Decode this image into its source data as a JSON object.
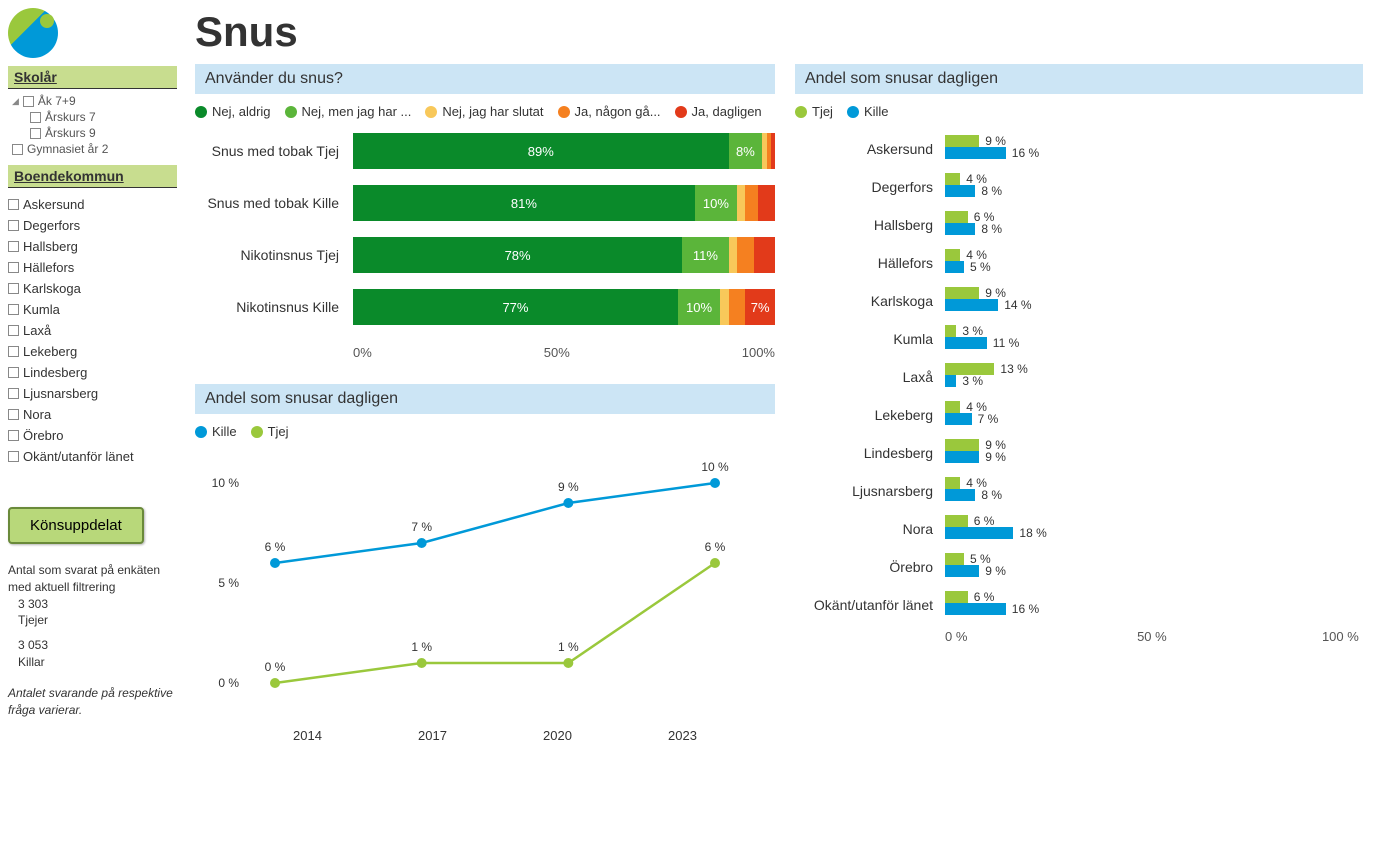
{
  "title": "Snus",
  "sidebar": {
    "skolar_label": "Skolår",
    "tree": {
      "l0": "Åk 7+9",
      "l1a": "Årskurs 7",
      "l1b": "Årskurs 9",
      "l2": "Gymnasiet år 2"
    },
    "boende_label": "Boendekommun",
    "kommuner": [
      "Askersund",
      "Degerfors",
      "Hallsberg",
      "Hällefors",
      "Karlskoga",
      "Kumla",
      "Laxå",
      "Lekeberg",
      "Lindesberg",
      "Ljusnarsberg",
      "Nora",
      "Örebro",
      "Okänt/utanför länet"
    ],
    "kon_btn": "Könsuppdelat",
    "survey": {
      "head": "Antal som svarat på enkäten med aktuell filtrering",
      "n1": "3 303",
      "l1": "Tjejer",
      "n2": "3 053",
      "l2": "Killar"
    },
    "note": "Antalet svarande på respektive fråga varierar."
  },
  "stacked": {
    "title": "Använder du snus?",
    "legend": [
      {
        "label": "Nej, aldrig",
        "color": "#0a8a2a"
      },
      {
        "label": "Nej, men jag har ...",
        "color": "#5bb53a"
      },
      {
        "label": "Nej, jag har slutat",
        "color": "#f8c85a"
      },
      {
        "label": "Ja, någon gå...",
        "color": "#f58020"
      },
      {
        "label": "Ja, dagligen",
        "color": "#e23a1a"
      }
    ],
    "rows": [
      {
        "label": "Snus med tobak Tjej",
        "segs": [
          {
            "v": 89,
            "t": "89%"
          },
          {
            "v": 8,
            "t": "8%"
          },
          {
            "v": 1,
            "t": ""
          },
          {
            "v": 1,
            "t": ""
          },
          {
            "v": 1,
            "t": ""
          }
        ]
      },
      {
        "label": "Snus med tobak Kille",
        "segs": [
          {
            "v": 81,
            "t": "81%"
          },
          {
            "v": 10,
            "t": "10%"
          },
          {
            "v": 2,
            "t": ""
          },
          {
            "v": 3,
            "t": ""
          },
          {
            "v": 4,
            "t": ""
          }
        ]
      },
      {
        "label": "Nikotinsnus Tjej",
        "segs": [
          {
            "v": 78,
            "t": "78%"
          },
          {
            "v": 11,
            "t": "11%"
          },
          {
            "v": 2,
            "t": ""
          },
          {
            "v": 4,
            "t": ""
          },
          {
            "v": 5,
            "t": ""
          }
        ]
      },
      {
        "label": "Nikotinsnus Kille",
        "segs": [
          {
            "v": 77,
            "t": "77%"
          },
          {
            "v": 10,
            "t": "10%"
          },
          {
            "v": 2,
            "t": ""
          },
          {
            "v": 4,
            "t": ""
          },
          {
            "v": 7,
            "t": "7%"
          }
        ]
      }
    ],
    "axis": [
      "0%",
      "50%",
      "100%"
    ]
  },
  "line": {
    "title": "Andel som snusar dagligen",
    "legend": [
      {
        "label": "Kille",
        "color": "#0099d8"
      },
      {
        "label": "Tjej",
        "color": "#9ac83c"
      }
    ],
    "ylim": [
      0,
      10
    ],
    "yticks": [
      {
        "v": 0,
        "l": "0 %"
      },
      {
        "v": 5,
        "l": "5 %"
      },
      {
        "v": 10,
        "l": "10 %"
      }
    ],
    "years": [
      "2014",
      "2017",
      "2020",
      "2023"
    ],
    "kille": [
      {
        "y": 6,
        "l": "6 %"
      },
      {
        "y": 7,
        "l": "7 %"
      },
      {
        "y": 9,
        "l": "9 %"
      },
      {
        "y": 10,
        "l": "10 %"
      }
    ],
    "tjej": [
      {
        "y": 0,
        "l": "0 %"
      },
      {
        "y": 1,
        "l": "1 %"
      },
      {
        "y": 1,
        "l": "1 %"
      },
      {
        "y": 6,
        "l": "6 %"
      }
    ]
  },
  "hbar": {
    "title": "Andel som snusar dagligen",
    "legend": [
      {
        "label": "Tjej",
        "color": "#9ac83c"
      },
      {
        "label": "Kille",
        "color": "#0099d8"
      }
    ],
    "xmax": 100,
    "axis": [
      "0 %",
      "50 %",
      "100 %"
    ],
    "rows": [
      {
        "label": "Askersund",
        "tjej": 9,
        "kille": 16
      },
      {
        "label": "Degerfors",
        "tjej": 4,
        "kille": 8
      },
      {
        "label": "Hallsberg",
        "tjej": 6,
        "kille": 8
      },
      {
        "label": "Hällefors",
        "tjej": 4,
        "kille": 5
      },
      {
        "label": "Karlskoga",
        "tjej": 9,
        "kille": 14
      },
      {
        "label": "Kumla",
        "tjej": 3,
        "kille": 11
      },
      {
        "label": "Laxå",
        "tjej": 13,
        "kille": 3
      },
      {
        "label": "Lekeberg",
        "tjej": 4,
        "kille": 7
      },
      {
        "label": "Lindesberg",
        "tjej": 9,
        "kille": 9
      },
      {
        "label": "Ljusnarsberg",
        "tjej": 4,
        "kille": 8
      },
      {
        "label": "Nora",
        "tjej": 6,
        "kille": 18
      },
      {
        "label": "Örebro",
        "tjej": 5,
        "kille": 9
      },
      {
        "label": "Okänt/utanför länet",
        "tjej": 6,
        "kille": 16
      }
    ]
  }
}
